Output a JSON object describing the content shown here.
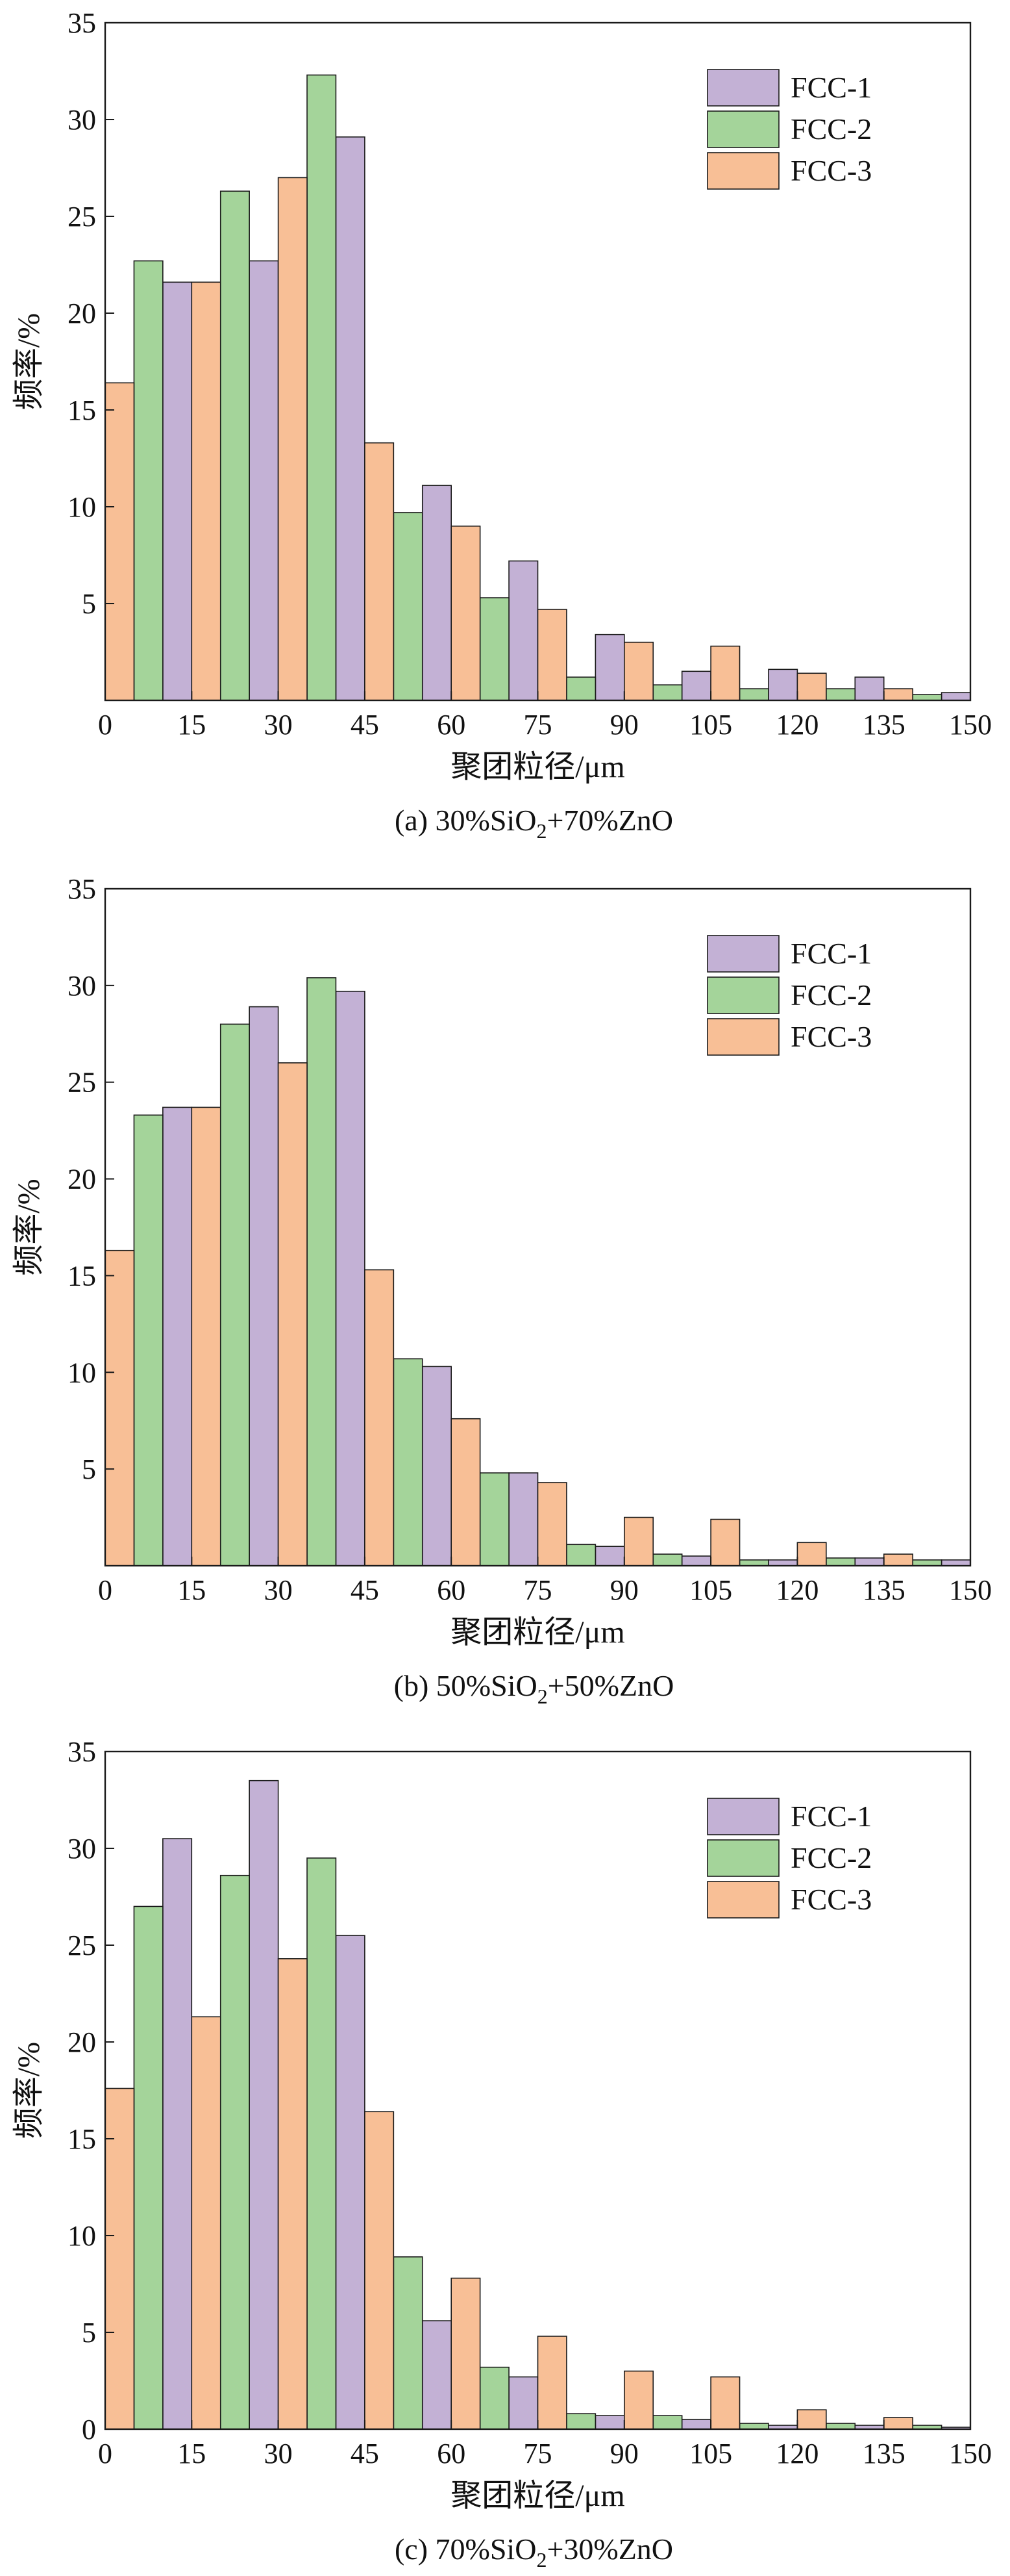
{
  "chart_data": [
    {
      "type": "bar",
      "title": "",
      "caption_prefix": "(a) 30%SiO",
      "caption_sub": "2",
      "caption_suffix": "+70%ZnO",
      "xlabel": "聚团粒径/μm",
      "ylabel": "频率/%",
      "xlim": [
        0,
        150
      ],
      "ylim": [
        0,
        35
      ],
      "xticks": [
        0,
        15,
        30,
        45,
        60,
        75,
        90,
        105,
        120,
        135,
        150
      ],
      "yticks": [
        5,
        10,
        15,
        20,
        25,
        30,
        35
      ],
      "bin_width": 15,
      "legend_position": "top-right",
      "series": [
        {
          "name": "FCC-1",
          "color": "#c3b1d5",
          "values": [
            21.6,
            22.7,
            29.1,
            11.1,
            7.2,
            3.4,
            1.5,
            1.6,
            1.2,
            0.4
          ]
        },
        {
          "name": "FCC-2",
          "color": "#a4d49a",
          "values": [
            22.7,
            26.3,
            32.3,
            9.7,
            5.3,
            1.2,
            0.8,
            0.6,
            0.6,
            0.3
          ]
        },
        {
          "name": "FCC-3",
          "color": "#f8bf96",
          "values": [
            16.4,
            21.6,
            27.0,
            13.3,
            9.0,
            4.7,
            3.0,
            2.8,
            1.4,
            0.6
          ]
        }
      ]
    },
    {
      "type": "bar",
      "title": "",
      "caption_prefix": "(b) 50%SiO",
      "caption_sub": "2",
      "caption_suffix": "+50%ZnO",
      "xlabel": "聚团粒径/μm",
      "ylabel": "频率/%",
      "xlim": [
        0,
        150
      ],
      "ylim": [
        0,
        35
      ],
      "xticks": [
        0,
        15,
        30,
        45,
        60,
        75,
        90,
        105,
        120,
        135,
        150
      ],
      "yticks": [
        5,
        10,
        15,
        20,
        25,
        30,
        35
      ],
      "bin_width": 15,
      "legend_position": "top-right",
      "series": [
        {
          "name": "FCC-1",
          "color": "#c3b1d5",
          "values": [
            23.7,
            28.9,
            29.7,
            10.3,
            4.8,
            1.0,
            0.5,
            0.3,
            0.4,
            0.3
          ]
        },
        {
          "name": "FCC-2",
          "color": "#a4d49a",
          "values": [
            23.3,
            28.0,
            30.4,
            10.7,
            4.8,
            1.1,
            0.6,
            0.3,
            0.4,
            0.3
          ]
        },
        {
          "name": "FCC-3",
          "color": "#f8bf96",
          "values": [
            16.3,
            23.7,
            26.0,
            15.3,
            7.6,
            4.3,
            2.5,
            2.4,
            1.2,
            0.6
          ]
        }
      ]
    },
    {
      "type": "bar",
      "title": "",
      "caption_prefix": "(c) 70%SiO",
      "caption_sub": "2",
      "caption_suffix": "+30%ZnO",
      "xlabel": "聚团粒径/μm",
      "ylabel": "频率/%",
      "xlim": [
        0,
        150
      ],
      "ylim": [
        0,
        35
      ],
      "xticks": [
        0,
        15,
        30,
        45,
        60,
        75,
        90,
        105,
        120,
        135,
        150
      ],
      "yticks": [
        0,
        5,
        10,
        15,
        20,
        25,
        30,
        35
      ],
      "bin_width": 15,
      "legend_position": "top-right",
      "series": [
        {
          "name": "FCC-1",
          "color": "#c3b1d5",
          "values": [
            30.5,
            33.5,
            25.5,
            5.6,
            2.7,
            0.7,
            0.5,
            0.2,
            0.2,
            0.1
          ]
        },
        {
          "name": "FCC-2",
          "color": "#a4d49a",
          "values": [
            27.0,
            28.6,
            29.5,
            8.9,
            3.2,
            0.8,
            0.7,
            0.3,
            0.3,
            0.2
          ]
        },
        {
          "name": "FCC-3",
          "color": "#f8bf96",
          "values": [
            17.6,
            21.3,
            24.3,
            16.4,
            7.8,
            4.8,
            3.0,
            2.7,
            1.0,
            0.6
          ]
        }
      ]
    }
  ]
}
